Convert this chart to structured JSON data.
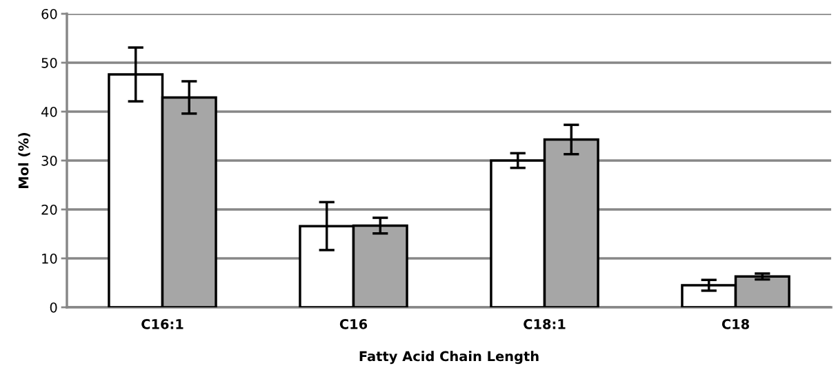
{
  "chart_data": {
    "type": "bar",
    "xlabel": "Fatty Acid Chain Length",
    "ylabel": "Mol (%)",
    "categories": [
      "C16:1",
      "C16",
      "C18:1",
      "C18"
    ],
    "series": [
      {
        "color": "#ffffff",
        "values": [
          47.6,
          16.6,
          30.0,
          4.5
        ],
        "errors": [
          5.5,
          4.9,
          1.5,
          1.1
        ]
      },
      {
        "color": "#a6a6a6",
        "values": [
          42.9,
          16.7,
          34.3,
          6.3
        ],
        "errors": [
          3.3,
          1.6,
          3.0,
          0.6
        ]
      }
    ],
    "ylim": [
      0,
      60
    ],
    "yticks": [
      0,
      10,
      20,
      30,
      40,
      50,
      60
    ],
    "grid": "y",
    "legend": false
  }
}
